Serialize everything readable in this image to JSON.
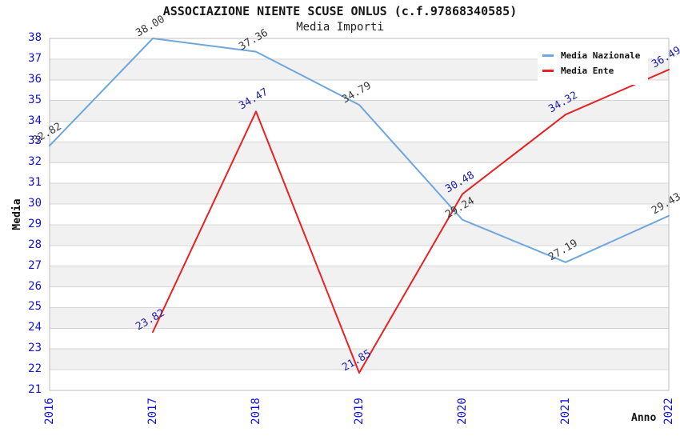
{
  "title": "ASSOCIAZIONE NIENTE SCUSE ONLUS (c.f.97868340585)",
  "subtitle": "Media Importi",
  "axes": {
    "y_label": "Media",
    "x_label": "Anno",
    "y_ticks": [
      "38",
      "37",
      "36",
      "35",
      "34",
      "33",
      "32",
      "31",
      "30",
      "29",
      "28",
      "27",
      "26",
      "25",
      "24",
      "23",
      "22",
      "21"
    ],
    "x_ticks": [
      "2016",
      "2017",
      "2018",
      "2019",
      "2020",
      "2021",
      "2022"
    ]
  },
  "legend": {
    "items": [
      {
        "label": "Media Nazionale",
        "color": "#6ea7dd"
      },
      {
        "label": "Media Ente",
        "color": "#e82222"
      }
    ]
  },
  "colors": {
    "axis_tick_text": "#1111dd",
    "band_gray": "#f1f1f1",
    "band_white": "#ffffff",
    "gridline": "#d6d6d6",
    "plot_border": "#bdbdbd",
    "blue_line": "#6ea7dd",
    "red_line": "#e82222",
    "blue_label_text": "#3a3a3a",
    "red_label_text": "#2222aa"
  },
  "chart_data": {
    "type": "line",
    "title": "ASSOCIAZIONE NIENTE SCUSE ONLUS (c.f.97868340585)",
    "subtitle": "Media Importi",
    "xlabel": "Anno",
    "ylabel": "Media",
    "ylim": [
      21,
      38
    ],
    "grid": true,
    "legend_position": "top-right",
    "x": [
      2016,
      2017,
      2018,
      2019,
      2020,
      2021,
      2022
    ],
    "series": [
      {
        "name": "Media Nazionale",
        "color": "#6ea7dd",
        "label_color": "#3a3a3a",
        "values": [
          32.82,
          38.0,
          37.36,
          34.79,
          29.24,
          27.19,
          29.43
        ]
      },
      {
        "name": "Media Ente",
        "color": "#e82222",
        "label_color": "#2222aa",
        "values": [
          null,
          23.82,
          34.47,
          21.85,
          30.48,
          34.32,
          36.49
        ]
      }
    ]
  }
}
